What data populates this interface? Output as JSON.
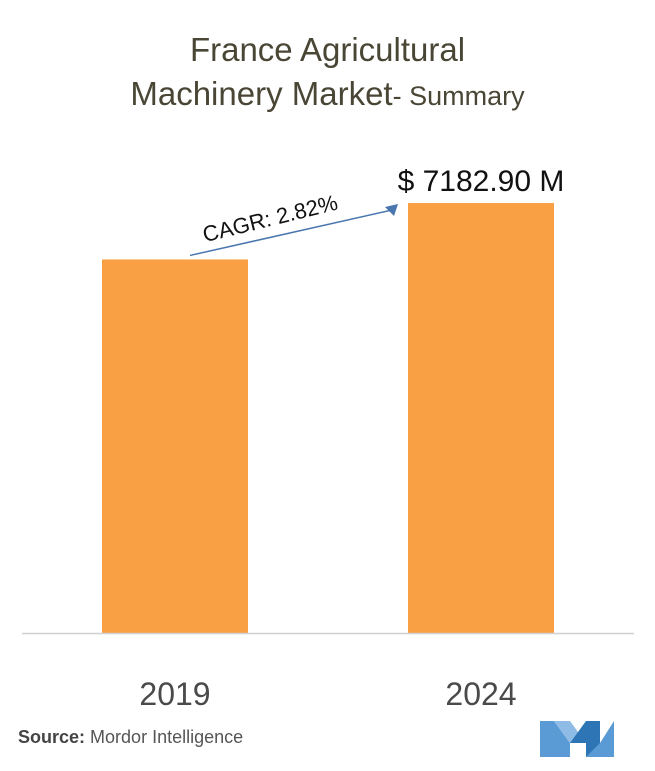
{
  "title": {
    "line1": "France Agricultural",
    "line2": "Machinery Market",
    "suffix": "- Summary"
  },
  "chart_data": {
    "type": "bar",
    "categories": [
      "2019",
      "2024"
    ],
    "values": [
      6240,
      7182.9
    ],
    "value_labels": [
      "",
      "$ 7182.90 M"
    ],
    "annotation": "CAGR: 2.82%",
    "ylim": [
      0,
      7182.9
    ],
    "grid": false,
    "bar_color": "#f9a044",
    "arrow_color": "#4a76b0"
  },
  "source": {
    "label": "Source:",
    "text": "Mordor Intelligence"
  },
  "logo": {
    "icon": "mordor-intelligence-logo",
    "colors": [
      "#5b9bd5",
      "#2e75b6",
      "#8fbce6"
    ]
  }
}
